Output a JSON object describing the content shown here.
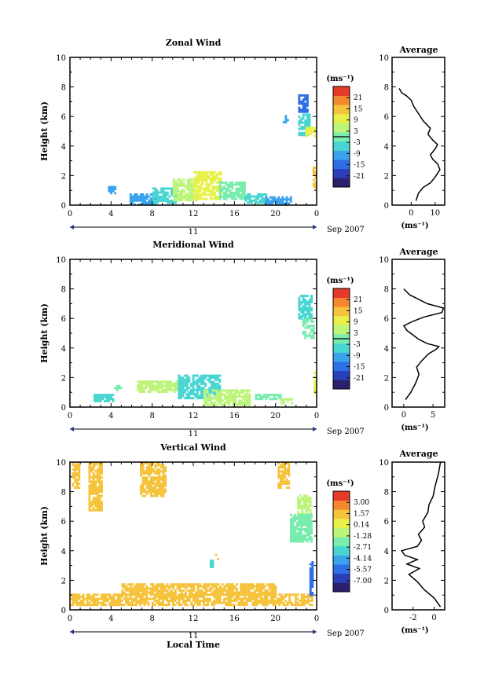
{
  "figure": {
    "date_label": "Sep 2007",
    "day_label": "11",
    "xlabel": "Local Time",
    "avg_title": "Average"
  },
  "chart_data": [
    {
      "type": "heatmap",
      "title": "Zonal Wind",
      "xlabel": "",
      "ylabel": "Height (km)",
      "xlim": [
        0,
        24
      ],
      "ylim": [
        0,
        10
      ],
      "x_ticks": [
        "0",
        "4",
        "8",
        "12",
        "16",
        "20",
        "0"
      ],
      "y_ticks": [
        "0",
        "2",
        "4",
        "6",
        "8",
        "10"
      ],
      "colorbar": {
        "unit": "(ms⁻¹)",
        "levels": [
          "21",
          "15",
          "9",
          "3",
          "-3",
          "-9",
          "-15",
          "-21"
        ],
        "range": [
          -24,
          24
        ],
        "colors": [
          "#2c1f6e",
          "#2b3fb8",
          "#2f6fe6",
          "#3aa3ec",
          "#49d6d2",
          "#79ecae",
          "#bdf47a",
          "#e8f04a",
          "#f6c33c",
          "#f3882f",
          "#e5392a"
        ]
      },
      "regions": [
        {
          "x": [
            3.7,
            4.3
          ],
          "y": [
            0.8,
            1.3
          ],
          "value": -7
        },
        {
          "x": [
            5.8,
            8.2
          ],
          "y": [
            0.1,
            0.8
          ],
          "value": -9
        },
        {
          "x": [
            8,
            10.5
          ],
          "y": [
            0.2,
            1.2
          ],
          "value": -4
        },
        {
          "x": [
            10,
            12.2
          ],
          "y": [
            0.3,
            1.8
          ],
          "value": 5
        },
        {
          "x": [
            12,
            14.7
          ],
          "y": [
            0.5,
            2.3
          ],
          "value": 8
        },
        {
          "x": [
            14.5,
            17
          ],
          "y": [
            0.4,
            1.6
          ],
          "value": 2
        },
        {
          "x": [
            17,
            19
          ],
          "y": [
            0.2,
            0.8
          ],
          "value": -4
        },
        {
          "x": [
            19,
            21.5
          ],
          "y": [
            0.1,
            0.6
          ],
          "value": -8
        },
        {
          "x": [
            20.7,
            21.2
          ],
          "y": [
            5.6,
            6.1
          ],
          "value": -9
        },
        {
          "x": [
            22.2,
            23.1
          ],
          "y": [
            6.3,
            7.5
          ],
          "value": -12
        },
        {
          "x": [
            22.2,
            23.3
          ],
          "y": [
            4.8,
            6.2
          ],
          "value": -4
        },
        {
          "x": [
            22.9,
            23.7
          ],
          "y": [
            4.7,
            5.3
          ],
          "value": 8
        },
        {
          "x": [
            23.6,
            23.8
          ],
          "y": [
            1.1,
            2.6
          ],
          "value": 11
        }
      ],
      "average_profile": {
        "xlabel": "(ms⁻¹)",
        "xlim": [
          -8,
          14
        ],
        "x_ticks": [
          "0",
          "10"
        ],
        "ylim": [
          0,
          10
        ],
        "y_ticks": [
          "0",
          "2",
          "4",
          "6",
          "8",
          "10"
        ],
        "x": [
          2,
          3,
          5,
          8,
          10,
          12,
          11,
          9,
          8,
          10,
          11,
          9,
          7,
          8,
          5,
          3,
          1,
          0,
          -2,
          -4,
          -5
        ],
        "y": [
          0.3,
          0.8,
          1.2,
          1.5,
          1.9,
          2.4,
          2.8,
          3.1,
          3.4,
          3.8,
          4.1,
          4.4,
          4.8,
          5.2,
          5.7,
          6.2,
          6.7,
          7.1,
          7.4,
          7.6,
          7.9
        ]
      }
    },
    {
      "type": "heatmap",
      "title": "Meridional Wind",
      "xlabel": "",
      "ylabel": "Height (km)",
      "xlim": [
        0,
        24
      ],
      "ylim": [
        0,
        10
      ],
      "x_ticks": [
        "0",
        "4",
        "8",
        "12",
        "16",
        "20",
        "0"
      ],
      "y_ticks": [
        "0",
        "2",
        "4",
        "6",
        "8",
        "10"
      ],
      "colorbar": {
        "unit": "(ms⁻¹)",
        "levels": [
          "21",
          "15",
          "9",
          "3",
          "-3",
          "-9",
          "-15",
          "-21"
        ],
        "range": [
          -24,
          24
        ],
        "colors": [
          "#2c1f6e",
          "#2b3fb8",
          "#2f6fe6",
          "#3aa3ec",
          "#49d6d2",
          "#79ecae",
          "#bdf47a",
          "#e8f04a",
          "#f6c33c",
          "#f3882f",
          "#e5392a"
        ]
      },
      "regions": [
        {
          "x": [
            2.3,
            4.2
          ],
          "y": [
            0.4,
            0.9
          ],
          "value": -6
        },
        {
          "x": [
            4.3,
            5
          ],
          "y": [
            1.1,
            1.5
          ],
          "value": 1
        },
        {
          "x": [
            6.5,
            11
          ],
          "y": [
            1.1,
            1.8
          ],
          "value": 3
        },
        {
          "x": [
            10.5,
            14.5
          ],
          "y": [
            0.6,
            2.2
          ],
          "value": -3
        },
        {
          "x": [
            13,
            17.5
          ],
          "y": [
            0.2,
            1.2
          ],
          "value": 4
        },
        {
          "x": [
            18,
            20.5
          ],
          "y": [
            0.5,
            0.9
          ],
          "value": -2
        },
        {
          "x": [
            20.5,
            21.5
          ],
          "y": [
            0.2,
            0.6
          ],
          "value": 3
        },
        {
          "x": [
            22.2,
            23.4
          ],
          "y": [
            6,
            7.6
          ],
          "value": -5
        },
        {
          "x": [
            22.6,
            23.6
          ],
          "y": [
            4.7,
            6
          ],
          "value": 0
        },
        {
          "x": [
            23.7,
            23.9
          ],
          "y": [
            1,
            2.4
          ],
          "value": 9
        }
      ],
      "average_profile": {
        "xlabel": "(ms⁻¹)",
        "xlim": [
          -2,
          7
        ],
        "x_ticks": [
          "0",
          "5"
        ],
        "ylim": [
          0,
          10
        ],
        "y_ticks": [
          "0",
          "2",
          "4",
          "6",
          "8",
          "10"
        ],
        "x": [
          0.3,
          1.2,
          2,
          2.6,
          2.2,
          3,
          4.2,
          5.5,
          6,
          4,
          2.5,
          1.5,
          0.5,
          0,
          1.5,
          3.5,
          6.5,
          6.8,
          4,
          1,
          0
        ],
        "y": [
          0.5,
          1,
          1.6,
          2.2,
          2.7,
          3.1,
          3.6,
          3.9,
          4.1,
          4.3,
          4.6,
          4.9,
          5.2,
          5.5,
          5.8,
          6.1,
          6.4,
          6.7,
          7,
          7.6,
          8
        ]
      }
    },
    {
      "type": "heatmap",
      "title": "Vertical Wind",
      "xlabel": "Local Time",
      "ylabel": "Height (km)",
      "xlim": [
        0,
        24
      ],
      "ylim": [
        0,
        10
      ],
      "x_ticks": [
        "0",
        "4",
        "8",
        "12",
        "16",
        "20",
        "0"
      ],
      "y_ticks": [
        "0",
        "2",
        "4",
        "6",
        "8",
        "10"
      ],
      "colorbar": {
        "unit": "(ms⁻¹)",
        "levels": [
          "3.00",
          "1.57",
          "0.14",
          "-1.28",
          "-2.71",
          "-4.14",
          "-5.57",
          "-7.00"
        ],
        "range": [
          -8,
          4
        ],
        "colors": [
          "#2c1f6e",
          "#2b3fb8",
          "#2f6fe6",
          "#3aa3ec",
          "#49d6d2",
          "#79ecae",
          "#bdf47a",
          "#e8f04a",
          "#f6c33c",
          "#f3882f",
          "#e5392a"
        ]
      },
      "regions": [
        {
          "x": [
            0,
            23.5
          ],
          "y": [
            0.3,
            1.1
          ],
          "value": 0.8
        },
        {
          "x": [
            5,
            20
          ],
          "y": [
            1,
            1.8
          ],
          "value": 1.2
        },
        {
          "x": [
            0.2,
            0.8
          ],
          "y": [
            8.3,
            10
          ],
          "value": 1.4
        },
        {
          "x": [
            1.8,
            3
          ],
          "y": [
            6.8,
            10
          ],
          "value": 1.8
        },
        {
          "x": [
            6.8,
            9.3
          ],
          "y": [
            7.7,
            10
          ],
          "value": 1.5
        },
        {
          "x": [
            20.2,
            21.2
          ],
          "y": [
            8.3,
            10
          ],
          "value": 1.6
        },
        {
          "x": [
            13.6,
            13.9
          ],
          "y": [
            2.9,
            3.4
          ],
          "value": -3.5
        },
        {
          "x": [
            14.1,
            14.4
          ],
          "y": [
            3.4,
            3.8
          ],
          "value": 1.7
        },
        {
          "x": [
            22.1,
            23.4
          ],
          "y": [
            6,
            7.8
          ],
          "value": -0.8
        },
        {
          "x": [
            21.4,
            23.4
          ],
          "y": [
            4.6,
            6.5
          ],
          "value": -1.6
        },
        {
          "x": [
            23.3,
            23.6
          ],
          "y": [
            1,
            3.3
          ],
          "value": -5
        }
      ],
      "average_profile": {
        "xlabel": "(ms⁻¹)",
        "xlim": [
          -4,
          1
        ],
        "x_ticks": [
          "-2",
          "0"
        ],
        "ylim": [
          0,
          10
        ],
        "y_ticks": [
          "0",
          "2",
          "4",
          "6",
          "8",
          "10"
        ],
        "x": [
          0.6,
          0,
          -1,
          -1.6,
          -2.4,
          -1.4,
          -2.6,
          -1.6,
          -2.8,
          -3.1,
          -1.6,
          -1.2,
          -1.5,
          -0.9,
          -1.1,
          -0.6,
          -0.5,
          -0.1,
          0.1,
          0.4,
          0.6
        ],
        "y": [
          0.2,
          0.8,
          1.4,
          1.9,
          2.4,
          2.8,
          3.1,
          3.4,
          3.7,
          4,
          4.3,
          4.7,
          5.1,
          5.6,
          6,
          6.6,
          7.1,
          7.7,
          8.4,
          9.2,
          10
        ]
      }
    }
  ]
}
